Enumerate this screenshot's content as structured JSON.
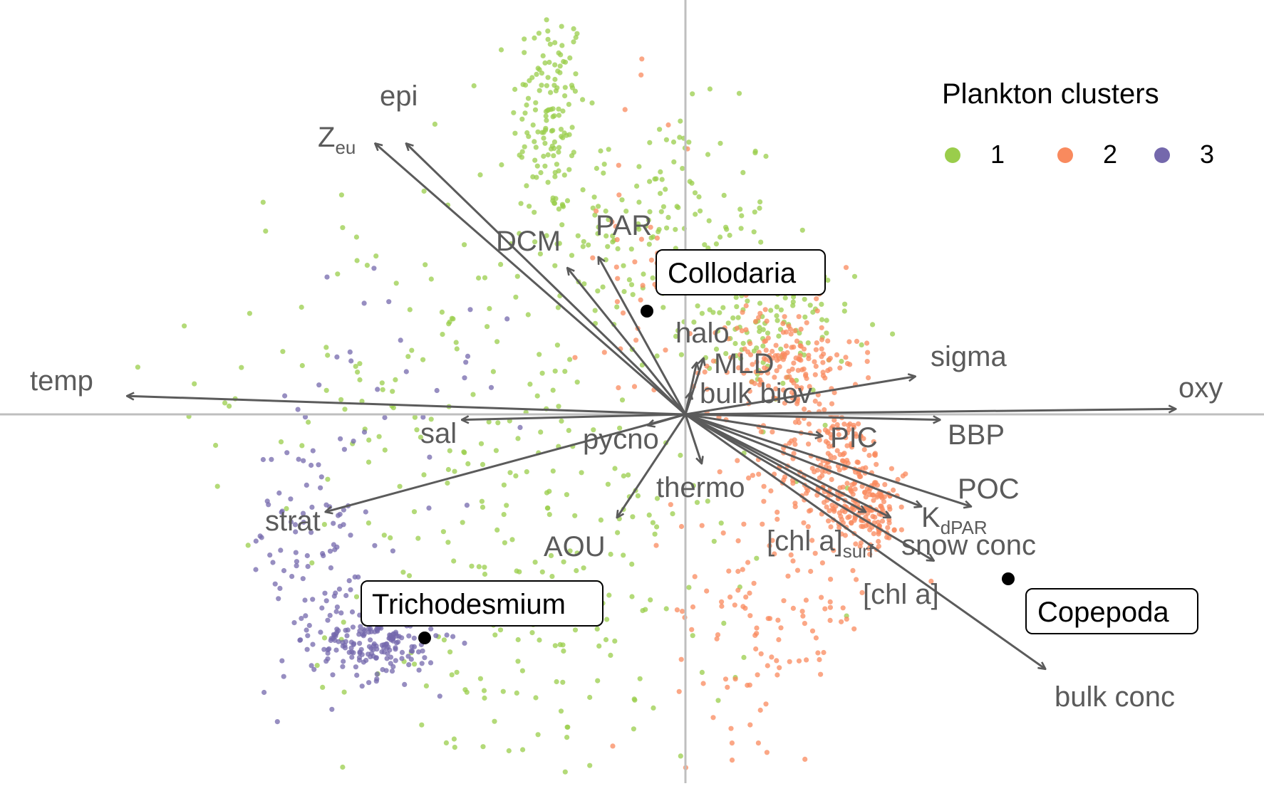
{
  "chart_data": {
    "type": "scatter",
    "title": "",
    "xlabel": "",
    "ylabel": "",
    "xlim": [
      -1.0,
      1.0
    ],
    "ylim": [
      -0.66,
      0.73
    ],
    "legend": {
      "title": "Plankton clusters",
      "placement": "top-right",
      "items": [
        {
          "label": "1",
          "color": "#9ACD4B"
        },
        {
          "label": "2",
          "color": "#F98A5E"
        },
        {
          "label": "3",
          "color": "#7468AC"
        }
      ]
    },
    "clusters": [
      {
        "name": "1",
        "color": "#9ACD4B",
        "regions": [
          {
            "x": -0.22,
            "y": 0.56,
            "sx": 0.03,
            "sy": 0.1,
            "n": 130
          },
          {
            "x": -0.05,
            "y": 0.36,
            "sx": 0.1,
            "sy": 0.1,
            "n": 140
          },
          {
            "x": -0.38,
            "y": 0.08,
            "sx": 0.2,
            "sy": 0.18,
            "n": 150
          },
          {
            "x": -0.22,
            "y": -0.35,
            "sx": 0.16,
            "sy": 0.16,
            "n": 190
          },
          {
            "x": 0.13,
            "y": 0.16,
            "sx": 0.07,
            "sy": 0.06,
            "n": 120
          }
        ]
      },
      {
        "name": "2",
        "color": "#F98A5E",
        "regions": [
          {
            "x": 0.16,
            "y": 0.1,
            "sx": 0.06,
            "sy": 0.05,
            "n": 170
          },
          {
            "x": 0.24,
            "y": -0.1,
            "sx": 0.05,
            "sy": 0.06,
            "n": 200
          },
          {
            "x": 0.3,
            "y": -0.18,
            "sx": 0.03,
            "sy": 0.03,
            "n": 120
          },
          {
            "x": 0.14,
            "y": -0.36,
            "sx": 0.08,
            "sy": 0.12,
            "n": 120
          },
          {
            "x": -0.08,
            "y": 0.28,
            "sx": 0.05,
            "sy": 0.15,
            "n": 40
          }
        ]
      },
      {
        "name": "3",
        "color": "#7468AC",
        "regions": [
          {
            "x": -0.5,
            "y": -0.42,
            "sx": 0.05,
            "sy": 0.035,
            "n": 190
          },
          {
            "x": -0.6,
            "y": -0.25,
            "sx": 0.05,
            "sy": 0.12,
            "n": 90
          },
          {
            "x": -0.48,
            "y": 0.06,
            "sx": 0.1,
            "sy": 0.12,
            "n": 30
          }
        ]
      }
    ],
    "vectors": [
      {
        "name": "temp",
        "x": -0.9,
        "y": 0.034
      },
      {
        "name": "oxy",
        "x": 0.79,
        "y": 0.01
      },
      {
        "name": "Zeu",
        "x": -0.5,
        "y": 0.5
      },
      {
        "name": "epi",
        "x": -0.45,
        "y": 0.5
      },
      {
        "name": "DCM",
        "x": -0.19,
        "y": 0.27
      },
      {
        "name": "PAR",
        "x": -0.14,
        "y": 0.29
      },
      {
        "name": "halo",
        "x": 0.018,
        "y": 0.095
      },
      {
        "name": "MLD",
        "x": 0.029,
        "y": 0.103
      },
      {
        "name": "bulk biov",
        "x": 0.008,
        "y": 0.04
      },
      {
        "name": "sigma",
        "x": 0.37,
        "y": 0.07
      },
      {
        "name": "BBP",
        "x": 0.41,
        "y": -0.01
      },
      {
        "name": "PIC",
        "x": 0.22,
        "y": -0.04
      },
      {
        "name": "POC",
        "x": 0.46,
        "y": -0.17
      },
      {
        "name": "KdPAR",
        "x": 0.38,
        "y": -0.17
      },
      {
        "name": "snow conc",
        "x": 0.33,
        "y": -0.19
      },
      {
        "name": "[chl a]surf",
        "x": 0.29,
        "y": -0.18
      },
      {
        "name": "[chl a]",
        "x": 0.4,
        "y": -0.27
      },
      {
        "name": "bulk conc",
        "x": 0.58,
        "y": -0.47
      },
      {
        "name": "sal",
        "x": -0.36,
        "y": -0.01
      },
      {
        "name": "pycno",
        "x": -0.06,
        "y": -0.02
      },
      {
        "name": "thermo",
        "x": 0.026,
        "y": -0.09
      },
      {
        "name": "AOU",
        "x": -0.11,
        "y": -0.19
      },
      {
        "name": "strat",
        "x": -0.58,
        "y": -0.18
      }
    ],
    "taxa": [
      {
        "name": "Collodaria",
        "x": -0.06,
        "y": 0.17
      },
      {
        "name": "Trichodesmium",
        "x": -0.42,
        "y": -0.36
      },
      {
        "name": "Copepoda",
        "x": 0.53,
        "y": -0.26
      }
    ]
  },
  "labels": {
    "temp": "temp",
    "oxy": "oxy",
    "zeu_main": "Z",
    "zeu_sub": "eu",
    "epi": "epi",
    "dcm": "DCM",
    "par": "PAR",
    "halo": "halo",
    "mld": "MLD",
    "bulk_biov": "bulk biov",
    "sigma": "sigma",
    "bbp": "BBP",
    "pic": "PIC",
    "poc": "POC",
    "kd_main": "K",
    "kd_sub": "dPAR",
    "snow_conc": "snow conc",
    "chla_surf_main": "[chl a]",
    "chla_surf_sub": "surf",
    "chla": "[chl a]",
    "bulk_conc": "bulk conc",
    "sal": "sal",
    "pycno": "pycno",
    "thermo": "thermo",
    "aou": "AOU",
    "strat": "strat"
  },
  "taxa_labels": {
    "collodaria": "Collodaria",
    "trichodesmium": "Trichodesmium",
    "copepoda": "Copepoda"
  },
  "colors": {
    "axis": "#bfbfbf",
    "arrow": "#5b5b5b",
    "cluster1": "#9ACD4B",
    "cluster2": "#F98A5E",
    "cluster3": "#7468AC"
  }
}
